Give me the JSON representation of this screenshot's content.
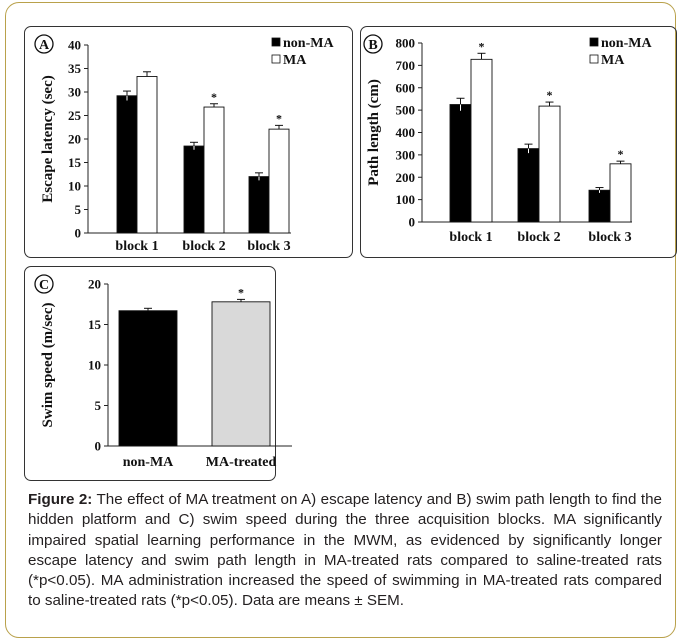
{
  "chart_data": [
    {
      "type": "bar",
      "panel_label": "A",
      "ylabel": "Escape latency (sec)",
      "categories": [
        "block 1",
        "block 2",
        "block 3"
      ],
      "series": [
        {
          "name": "non-MA",
          "values": [
            29.2,
            18.5,
            12.0
          ],
          "errors": [
            1.0,
            0.8,
            0.8
          ],
          "significant": [
            false,
            false,
            false
          ]
        },
        {
          "name": "MA",
          "values": [
            33.3,
            26.8,
            22.1
          ],
          "errors": [
            1.0,
            0.7,
            0.8
          ],
          "significant": [
            false,
            true,
            true
          ]
        }
      ],
      "ylim": [
        0,
        40
      ],
      "yticks": [
        0,
        5,
        10,
        15,
        20,
        25,
        30,
        35,
        40
      ],
      "legend": "top-right",
      "significance_marker": "*"
    },
    {
      "type": "bar",
      "panel_label": "B",
      "ylabel": "Path length (cm)",
      "categories": [
        "block 1",
        "block 2",
        "block 3"
      ],
      "series": [
        {
          "name": "non-MA",
          "values": [
            525,
            328,
            142
          ],
          "errors": [
            28,
            20,
            12
          ],
          "significant": [
            false,
            false,
            false
          ]
        },
        {
          "name": "MA",
          "values": [
            727,
            518,
            260
          ],
          "errors": [
            27,
            18,
            12
          ],
          "significant": [
            true,
            true,
            true
          ]
        }
      ],
      "ylim": [
        0,
        800
      ],
      "yticks": [
        0,
        100,
        200,
        300,
        400,
        500,
        600,
        700,
        800
      ],
      "legend": "top-right",
      "significance_marker": "*"
    },
    {
      "type": "bar",
      "panel_label": "C",
      "ylabel": "Swim speed (m/sec)",
      "categories": [
        "non-MA",
        "MA-treated"
      ],
      "values": [
        16.7,
        17.8
      ],
      "errors": [
        0.3,
        0.3
      ],
      "significant": [
        false,
        true
      ],
      "colors": [
        "#000000",
        "#d9d9d9"
      ],
      "ylim": [
        0,
        20
      ],
      "yticks": [
        0,
        5,
        10,
        15,
        20
      ],
      "significance_marker": "*"
    }
  ],
  "caption": {
    "label": "Figure 2:",
    "text": " The effect of MA treatment on A) escape latency and B) swim path length to find the hidden platform and C) swim speed during the three acquisition blocks. MA significantly impaired spatial learning performance in the MWM, as evidenced by significantly longer escape latency and swim path length in MA-treated rats compared to saline-treated rats (*p<0.05). MA administration increased the speed of swimming in MA-treated rats compared to saline-treated rats (*p<0.05). Data are means ± SEM."
  },
  "colors": {
    "non_ma": "#000000",
    "ma": "#ffffff",
    "ma_treated": "#d9d9d9",
    "frame_border": "#b9a14b"
  }
}
